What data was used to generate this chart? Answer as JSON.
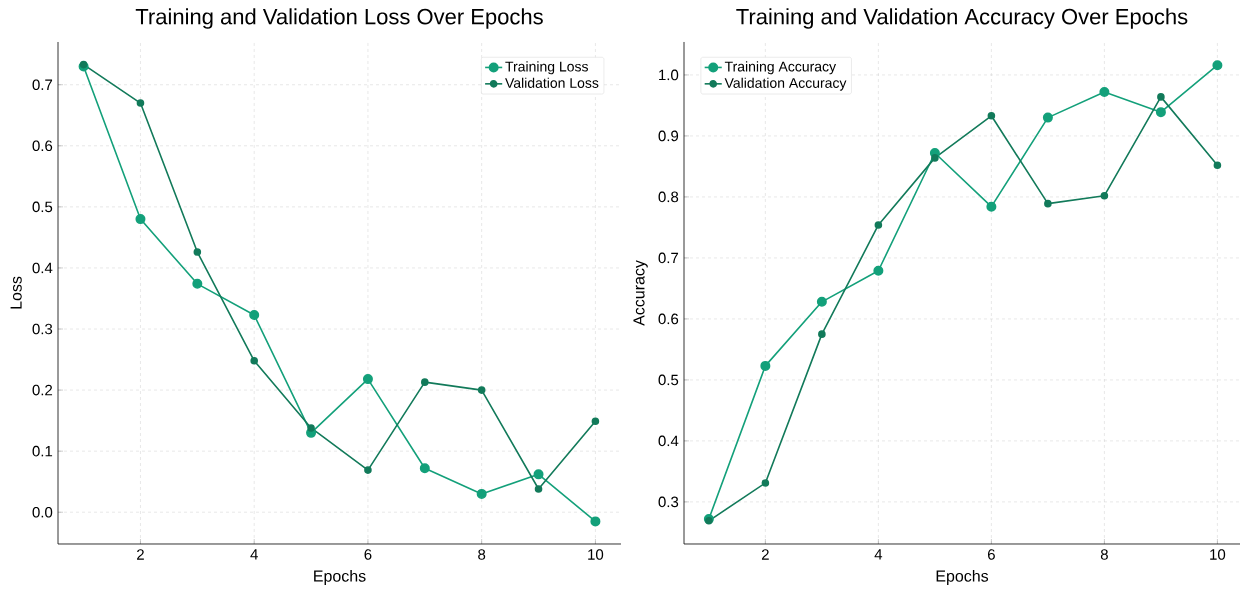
{
  "chart_data": [
    {
      "type": "line",
      "title": "Training and Validation Loss Over Epochs",
      "xlabel": "Epochs",
      "ylabel": "Loss",
      "x": [
        1,
        2,
        3,
        4,
        5,
        6,
        7,
        8,
        9,
        10
      ],
      "series": [
        {
          "name": "Training Loss",
          "color": "#13a07a",
          "values": [
            0.73,
            0.48,
            0.374,
            0.323,
            0.13,
            0.218,
            0.072,
            0.03,
            0.062,
            -0.015
          ]
        },
        {
          "name": "Validation Loss",
          "color": "#127a5a",
          "values": [
            0.733,
            0.67,
            0.426,
            0.248,
            0.138,
            0.069,
            0.213,
            0.2,
            0.038,
            0.149
          ]
        }
      ],
      "xlim": [
        0.55,
        10.45
      ],
      "ylim": [
        -0.052,
        0.77
      ],
      "xticks": [
        2,
        4,
        6,
        8,
        10
      ],
      "yticks": [
        {
          "value": 0,
          "label": "0.0"
        },
        {
          "value": 0.1,
          "label": "0.1"
        },
        {
          "value": 0.2,
          "label": "0.2"
        },
        {
          "value": 0.3,
          "label": "0.3"
        },
        {
          "value": 0.4,
          "label": "0.4"
        },
        {
          "value": 0.5,
          "label": "0.5"
        },
        {
          "value": 0.6,
          "label": "0.6"
        },
        {
          "value": 0.7,
          "label": "0.7"
        }
      ],
      "grid": true,
      "legend": "top right",
      "marker": "circle",
      "line_style": "solid"
    },
    {
      "type": "line",
      "title": "Training and Validation Accuracy Over Epochs",
      "xlabel": "Epochs",
      "ylabel": "Accuracy",
      "x": [
        1,
        2,
        3,
        4,
        5,
        6,
        7,
        8,
        9,
        10
      ],
      "series": [
        {
          "name": "Training Accuracy",
          "color": "#13a07a",
          "values": [
            0.272,
            0.523,
            0.628,
            0.679,
            0.872,
            0.784,
            0.93,
            0.972,
            0.939,
            1.016
          ]
        },
        {
          "name": "Validation Accuracy",
          "color": "#127a5a",
          "values": [
            0.269,
            0.331,
            0.575,
            0.754,
            0.864,
            0.933,
            0.789,
            0.802,
            0.964,
            0.852
          ]
        }
      ],
      "xlim": [
        0.56,
        10.4
      ],
      "ylim": [
        0.231,
        1.054
      ],
      "xticks": [
        2,
        4,
        6,
        8,
        10
      ],
      "yticks": [
        {
          "value": 0.3,
          "label": "0.3"
        },
        {
          "value": 0.4,
          "label": "0.4"
        },
        {
          "value": 0.5,
          "label": "0.5"
        },
        {
          "value": 0.6,
          "label": "0.6"
        },
        {
          "value": 0.7,
          "label": "0.7"
        },
        {
          "value": 0.8,
          "label": "0.8"
        },
        {
          "value": 0.9,
          "label": "0.9"
        },
        {
          "value": 1.0,
          "label": "1.0"
        }
      ],
      "grid": true,
      "legend": "top left",
      "marker": "circle",
      "line_style": "solid"
    }
  ]
}
